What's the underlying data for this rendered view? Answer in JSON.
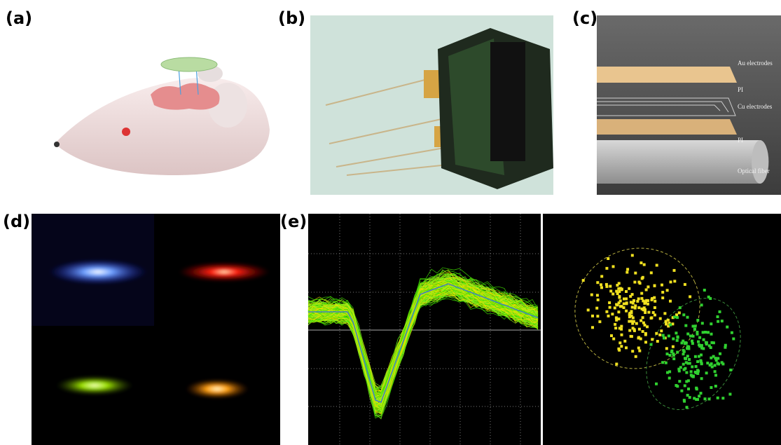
{
  "panels": [
    {
      "label": "(a)"
    },
    {
      "label": "(b)"
    },
    {
      "label": "(c)",
      "annotations": [
        "Au electrodes",
        "PI",
        "Cu electrodes",
        "PI",
        "Optical fiber"
      ]
    },
    {
      "label": "(d)"
    },
    {
      "label": "(e)"
    }
  ]
}
